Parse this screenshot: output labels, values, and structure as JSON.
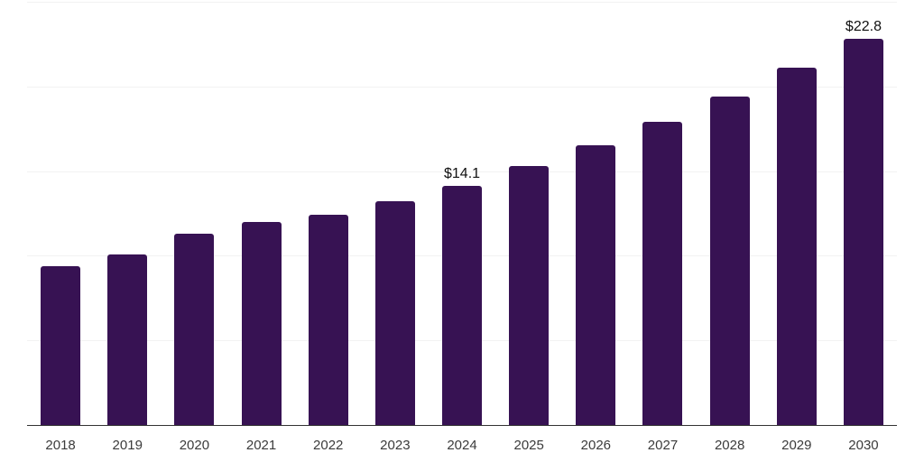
{
  "chart_data": {
    "type": "bar",
    "categories": [
      "2018",
      "2019",
      "2020",
      "2021",
      "2022",
      "2023",
      "2024",
      "2025",
      "2026",
      "2027",
      "2028",
      "2029",
      "2030"
    ],
    "values": [
      9.4,
      10.1,
      11.3,
      12.0,
      12.4,
      13.2,
      14.1,
      15.3,
      16.5,
      17.9,
      19.4,
      21.1,
      22.8
    ],
    "data_labels": [
      "",
      "",
      "",
      "",
      "",
      "",
      "$14.1",
      "",
      "",
      "",
      "",
      "",
      "$22.8"
    ],
    "title": "",
    "xlabel": "",
    "ylabel": "",
    "ylim": [
      0,
      25
    ],
    "grid": true,
    "gridline_step": 5,
    "y_tick_labels_visible": false,
    "legend": false,
    "colors": {
      "bar": "#371253",
      "gridline": "#f2f2f2",
      "axis_line": "#333333",
      "value_label": "#101010",
      "tick_label": "#3b3b3b",
      "background": "#ffffff"
    }
  }
}
